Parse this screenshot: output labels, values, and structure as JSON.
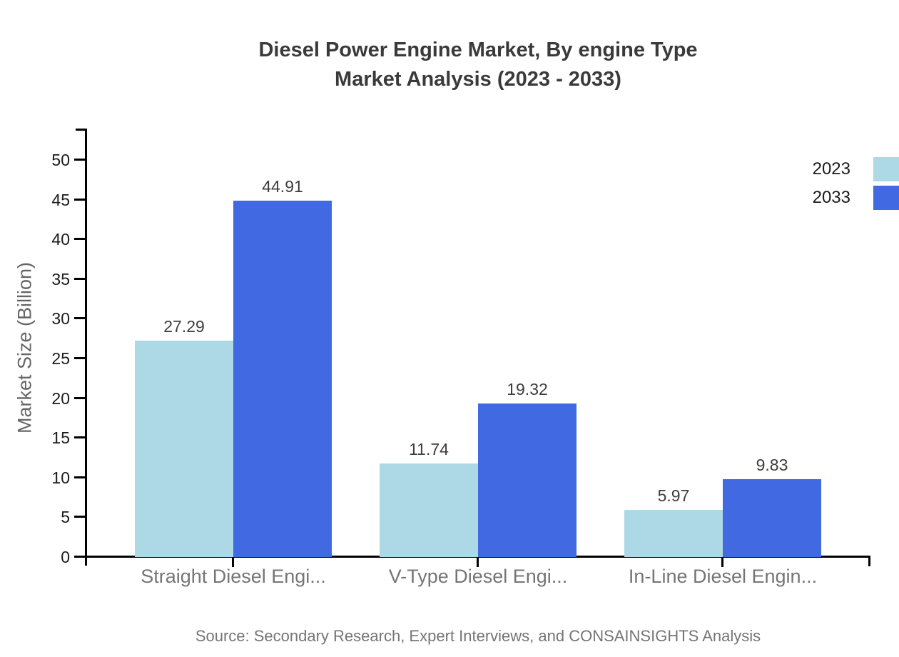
{
  "title": {
    "line1": "Diesel Power Engine Market, By engine Type",
    "line2": "Market Analysis (2023 - 2033)"
  },
  "source": "Source: Secondary Research, Expert Interviews, and CONSAINSIGHTS Analysis",
  "chart_data": {
    "type": "bar",
    "title": "Diesel Power Engine Market, By engine Type Market Analysis (2023 - 2033)",
    "categories": [
      "Straight Diesel Engi...",
      "V-Type Diesel Engi...",
      "In-Line Diesel Engin..."
    ],
    "series": [
      {
        "name": "2023",
        "color": "#ADD8E6",
        "values": [
          27.29,
          11.74,
          5.97
        ]
      },
      {
        "name": "2033",
        "color": "#4169E1",
        "values": [
          44.91,
          19.32,
          9.83
        ]
      }
    ],
    "xlabel": "",
    "ylabel": "Market Size (Billion)",
    "ylim": [
      0,
      50
    ],
    "yticks": [
      0,
      5,
      10,
      15,
      20,
      25,
      30,
      35,
      40,
      45,
      50
    ],
    "grid": false,
    "legend_position": "top-right",
    "value_labels": true
  }
}
